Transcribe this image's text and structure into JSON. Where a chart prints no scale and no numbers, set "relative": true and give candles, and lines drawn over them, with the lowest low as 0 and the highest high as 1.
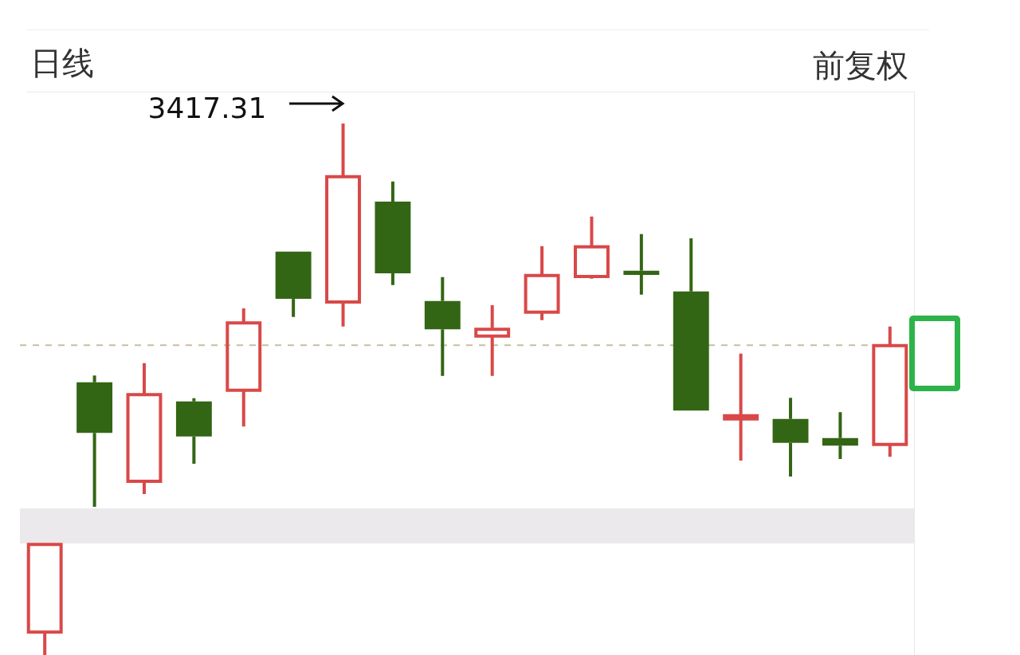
{
  "chart_data": {
    "type": "candlestick",
    "title": "日线",
    "subtitle": "前复权",
    "relative": true,
    "categories": [
      null,
      null,
      null,
      null,
      null,
      null,
      null,
      null,
      null,
      null,
      null,
      null,
      null,
      null,
      null,
      null,
      null,
      null
    ],
    "ohlc": [
      [
        0.043,
        0.208,
        0,
        0.208
      ],
      [
        0.513,
        0.526,
        0.279,
        0.418
      ],
      [
        0.327,
        0.549,
        0.303,
        0.49
      ],
      [
        0.477,
        0.483,
        0.36,
        0.411
      ],
      [
        0.498,
        0.652,
        0.43,
        0.625
      ],
      [
        0.759,
        0.759,
        0.636,
        0.67
      ],
      [
        0.664,
        1,
        0.618,
        0.9
      ],
      [
        0.853,
        0.891,
        0.696,
        0.718
      ],
      [
        0.666,
        0.711,
        0.525,
        0.613
      ],
      [
        0.6,
        0.658,
        0.525,
        0.613
      ],
      [
        0.645,
        0.769,
        0.63,
        0.714
      ],
      [
        0.712,
        0.825,
        0.708,
        0.768
      ],
      [
        0.723,
        0.792,
        0.678,
        0.715
      ],
      [
        0.684,
        0.784,
        0.46,
        0.46
      ],
      [
        0.447,
        0.567,
        0.366,
        0.45
      ],
      [
        0.444,
        0.484,
        0.336,
        0.399
      ],
      [
        0.408,
        0.457,
        0.369,
        0.394
      ],
      [
        0.396,
        0.618,
        0.373,
        0.582
      ]
    ],
    "colors": [
      "#d94848",
      "#336614",
      "#d94848",
      "#336614",
      "#d94848",
      "#336614",
      "#d94848",
      "#336614",
      "#336614",
      "#d94848",
      "#d94848",
      "#d94848",
      "#336614",
      "#336614",
      "#d94848",
      "#336614",
      "#336614",
      "#d94848"
    ],
    "annotations": [
      "3417.31"
    ],
    "ref_lines": [
      {
        "axis": "y",
        "value": 0.583,
        "color": "#c8bf9c",
        "line_style": "dashed"
      }
    ],
    "bands": [
      {
        "axis": "y",
        "from": 0.21,
        "to": 0.276,
        "color": "#ece9ec"
      }
    ],
    "legend": false
  }
}
